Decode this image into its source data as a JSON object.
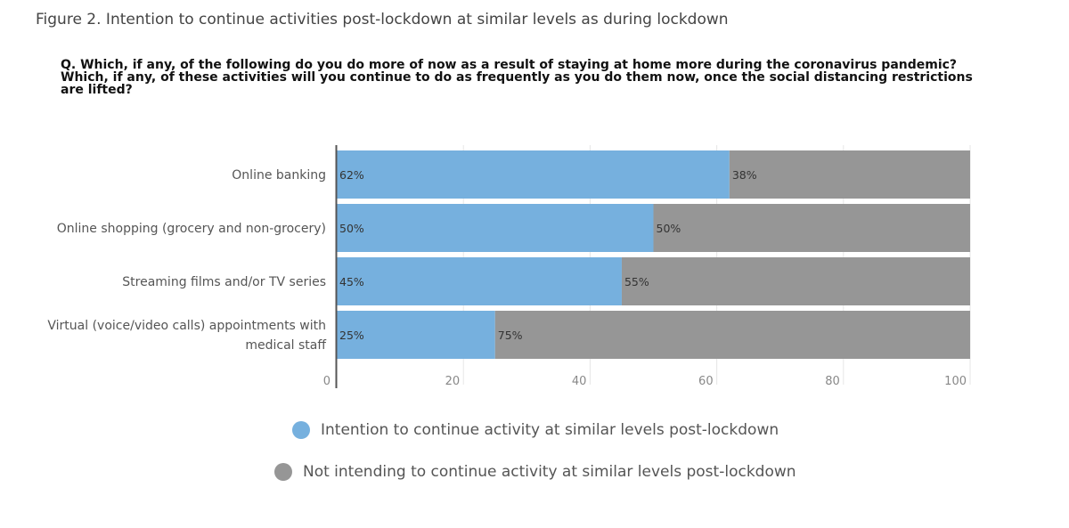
{
  "figure_title": "Figure 2. Intention to continue activities post-lockdown at similar levels as during lockdown",
  "question_lines": [
    "Q. Which, if any, of the following do you do more of now as a result of staying at home more during the coronavirus pandemic?",
    "Which, if any, of these activities will you continue to do as frequently as you do them now, once the social distancing restrictions",
    "are lifted?"
  ],
  "colors": {
    "continue": "#76b0de",
    "not_continue": "#969696",
    "axis": "#555555"
  },
  "chart_data": {
    "type": "bar",
    "orientation": "horizontal",
    "stacked": true,
    "categories": [
      [
        "Online banking"
      ],
      [
        "Online shopping (grocery and non-grocery)"
      ],
      [
        "Streaming films and/or TV series"
      ],
      [
        "Virtual (voice/video calls) appointments with",
        "medical staff"
      ]
    ],
    "series": [
      {
        "name": "Intention to continue activity at similar levels post-lockdown",
        "values": [
          62,
          50,
          45,
          25
        ],
        "labels": [
          "62%",
          "50%",
          "45%",
          "25%"
        ]
      },
      {
        "name": "Not intending to continue activity at similar levels post-lockdown",
        "values": [
          38,
          50,
          55,
          75
        ],
        "labels": [
          "38%",
          "50%",
          "55%",
          "75%"
        ]
      }
    ],
    "xlim": [
      0,
      100
    ],
    "xticks": [
      0,
      20,
      40,
      60,
      80,
      100
    ],
    "grid": true,
    "legend_position": "bottom"
  },
  "legend": [
    {
      "label": "Intention to continue activity at similar levels post-lockdown",
      "color": "#76b0de"
    },
    {
      "label": "Not intending to continue activity at similar levels post-lockdown",
      "color": "#969696"
    }
  ]
}
